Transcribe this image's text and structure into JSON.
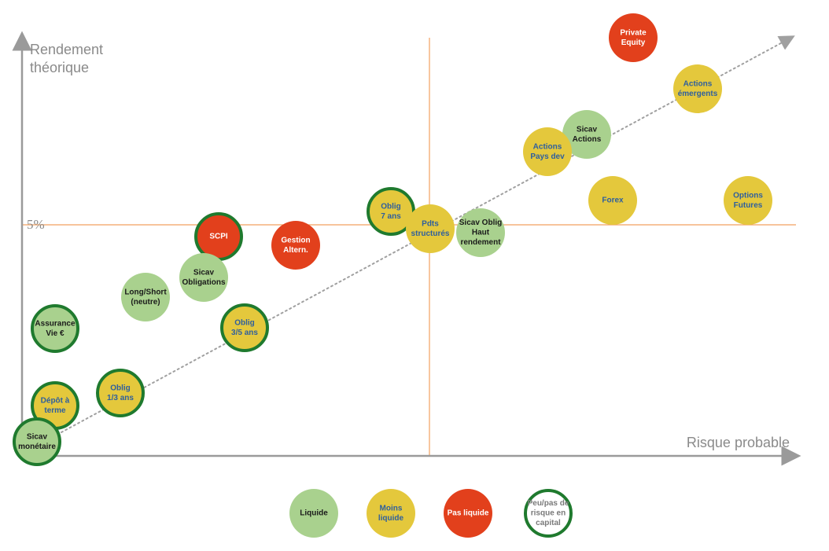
{
  "axes": {
    "y_title_lines": [
      "Rendement",
      "théorique"
    ],
    "x_title": "Risque probable",
    "y_reference_label": "5%"
  },
  "colors": {
    "liquide": "#a9d18e",
    "moins_liquide": "#e4c83c",
    "pas_liquide": "#e2401c",
    "capital_ring": "#1f7a2e",
    "text_dark": "#1a1a1a",
    "text_blue": "#2e5f9e",
    "text_white": "#ffffff",
    "axis": "#9a9a9a",
    "reference_lines": "#f2a15f",
    "trend": "#a0a0a0"
  },
  "bubbles": [
    {
      "id": "private-equity",
      "lines": [
        "Private",
        "Equity"
      ],
      "category": "pas_liquide",
      "capital_ring": false
    },
    {
      "id": "actions-emergents",
      "lines": [
        "Actions",
        "émergents"
      ],
      "category": "moins_liquide",
      "capital_ring": false
    },
    {
      "id": "sicav-actions",
      "lines": [
        "Sicav",
        "Actions"
      ],
      "category": "liquide",
      "capital_ring": false
    },
    {
      "id": "actions-pays-dev",
      "lines": [
        "Actions",
        "Pays dev"
      ],
      "category": "moins_liquide",
      "capital_ring": false
    },
    {
      "id": "forex",
      "lines": [
        "Forex"
      ],
      "category": "moins_liquide",
      "capital_ring": false
    },
    {
      "id": "options-futures",
      "lines": [
        "Options",
        "Futures"
      ],
      "category": "moins_liquide",
      "capital_ring": false
    },
    {
      "id": "oblig-7-ans",
      "lines": [
        "Oblig",
        "7 ans"
      ],
      "category": "moins_liquide",
      "capital_ring": true
    },
    {
      "id": "pdts-structures",
      "lines": [
        "Pdts",
        "structurés"
      ],
      "category": "moins_liquide",
      "capital_ring": false
    },
    {
      "id": "sicav-oblig-haut-rendement",
      "lines": [
        "Sicav Oblig",
        "Haut",
        "rendement"
      ],
      "category": "liquide",
      "capital_ring": false
    },
    {
      "id": "scpi",
      "lines": [
        "SCPI"
      ],
      "category": "pas_liquide",
      "capital_ring": true
    },
    {
      "id": "gestion-altern",
      "lines": [
        "Gestion",
        "Altern."
      ],
      "category": "pas_liquide",
      "capital_ring": false
    },
    {
      "id": "sicav-obligations",
      "lines": [
        "Sicav",
        "Obligations"
      ],
      "category": "liquide",
      "capital_ring": false
    },
    {
      "id": "long-short",
      "lines": [
        "Long/Short",
        "(neutre)"
      ],
      "category": "liquide",
      "capital_ring": false
    },
    {
      "id": "oblig-3-5-ans",
      "lines": [
        "Oblig",
        "3/5 ans"
      ],
      "category": "moins_liquide",
      "capital_ring": true
    },
    {
      "id": "assurance-vie",
      "lines": [
        "Assurance",
        "Vie €"
      ],
      "category": "liquide",
      "capital_ring": true
    },
    {
      "id": "oblig-1-3-ans",
      "lines": [
        "Oblig",
        "1/3 ans"
      ],
      "category": "moins_liquide",
      "capital_ring": true
    },
    {
      "id": "depot-a-terme",
      "lines": [
        "Dépôt à",
        "terme"
      ],
      "category": "moins_liquide",
      "capital_ring": true
    },
    {
      "id": "sicav-monetaire",
      "lines": [
        "Sicav",
        "monétaire"
      ],
      "category": "liquide",
      "capital_ring": true
    }
  ],
  "legend": [
    {
      "id": "liquide",
      "lines": [
        "Liquide"
      ],
      "category": "liquide",
      "capital_ring": false
    },
    {
      "id": "moins-liquide",
      "lines": [
        "Moins",
        "liquide"
      ],
      "category": "moins_liquide",
      "capital_ring": false
    },
    {
      "id": "pas-liquide",
      "lines": [
        "Pas liquide"
      ],
      "category": "pas_liquide",
      "capital_ring": false
    },
    {
      "id": "peu-pas-de-risque",
      "lines": [
        "Peu/pas de",
        "risque en",
        "capital"
      ],
      "category": "none",
      "capital_ring": true
    }
  ]
}
